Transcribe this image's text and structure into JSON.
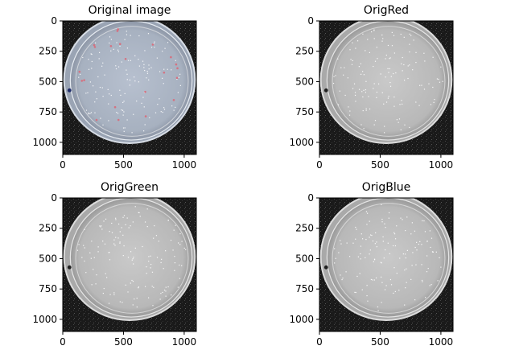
{
  "figure": {
    "panels": [
      {
        "title": "Original image",
        "mode": "color"
      },
      {
        "title": "OrigRed",
        "mode": "red"
      },
      {
        "title": "OrigGreen",
        "mode": "green"
      },
      {
        "title": "OrigBlue",
        "mode": "blue"
      }
    ],
    "axes": {
      "x_ticks": [
        "0",
        "500",
        "1000"
      ],
      "y_ticks": [
        "0",
        "250",
        "500",
        "750",
        "1000"
      ],
      "x_values": [
        0,
        500,
        1000
      ],
      "y_values": [
        0,
        250,
        500,
        750,
        1000
      ],
      "extent": [
        0,
        1100
      ]
    },
    "colors": {
      "background": "#1b1b1b",
      "dish_color": "#a9b3c2",
      "dish_gray": "#bdbdbd"
    }
  }
}
